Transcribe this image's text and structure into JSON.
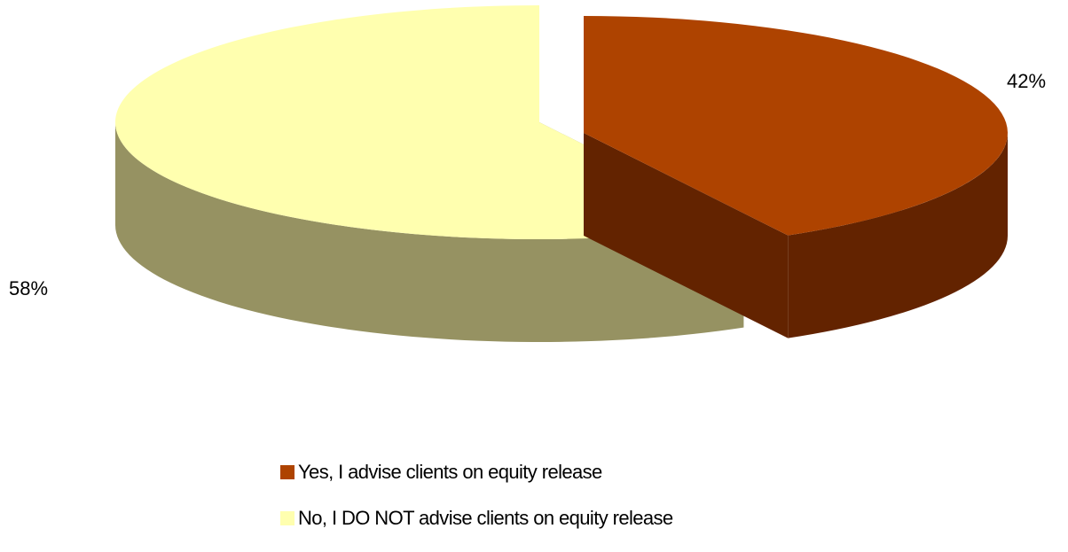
{
  "chart_data": {
    "type": "pie",
    "style": "3d-exploded",
    "title": "",
    "categories": [
      "Yes, I advise clients on equity release",
      "No, I DO NOT advise clients on equity release"
    ],
    "values": [
      42,
      58
    ],
    "data_labels": [
      "42%",
      "58%"
    ],
    "colors": {
      "top": [
        "#AE4300",
        "#FFFFAF"
      ],
      "side": [
        "#632300",
        "#969262"
      ]
    },
    "legend": {
      "position": "bottom",
      "entries": [
        {
          "label": "Yes, I advise clients on equity release",
          "color": "#AE4300"
        },
        {
          "label": "No, I DO NOT advise clients on equity release",
          "color": "#FFFFAF"
        }
      ]
    }
  }
}
